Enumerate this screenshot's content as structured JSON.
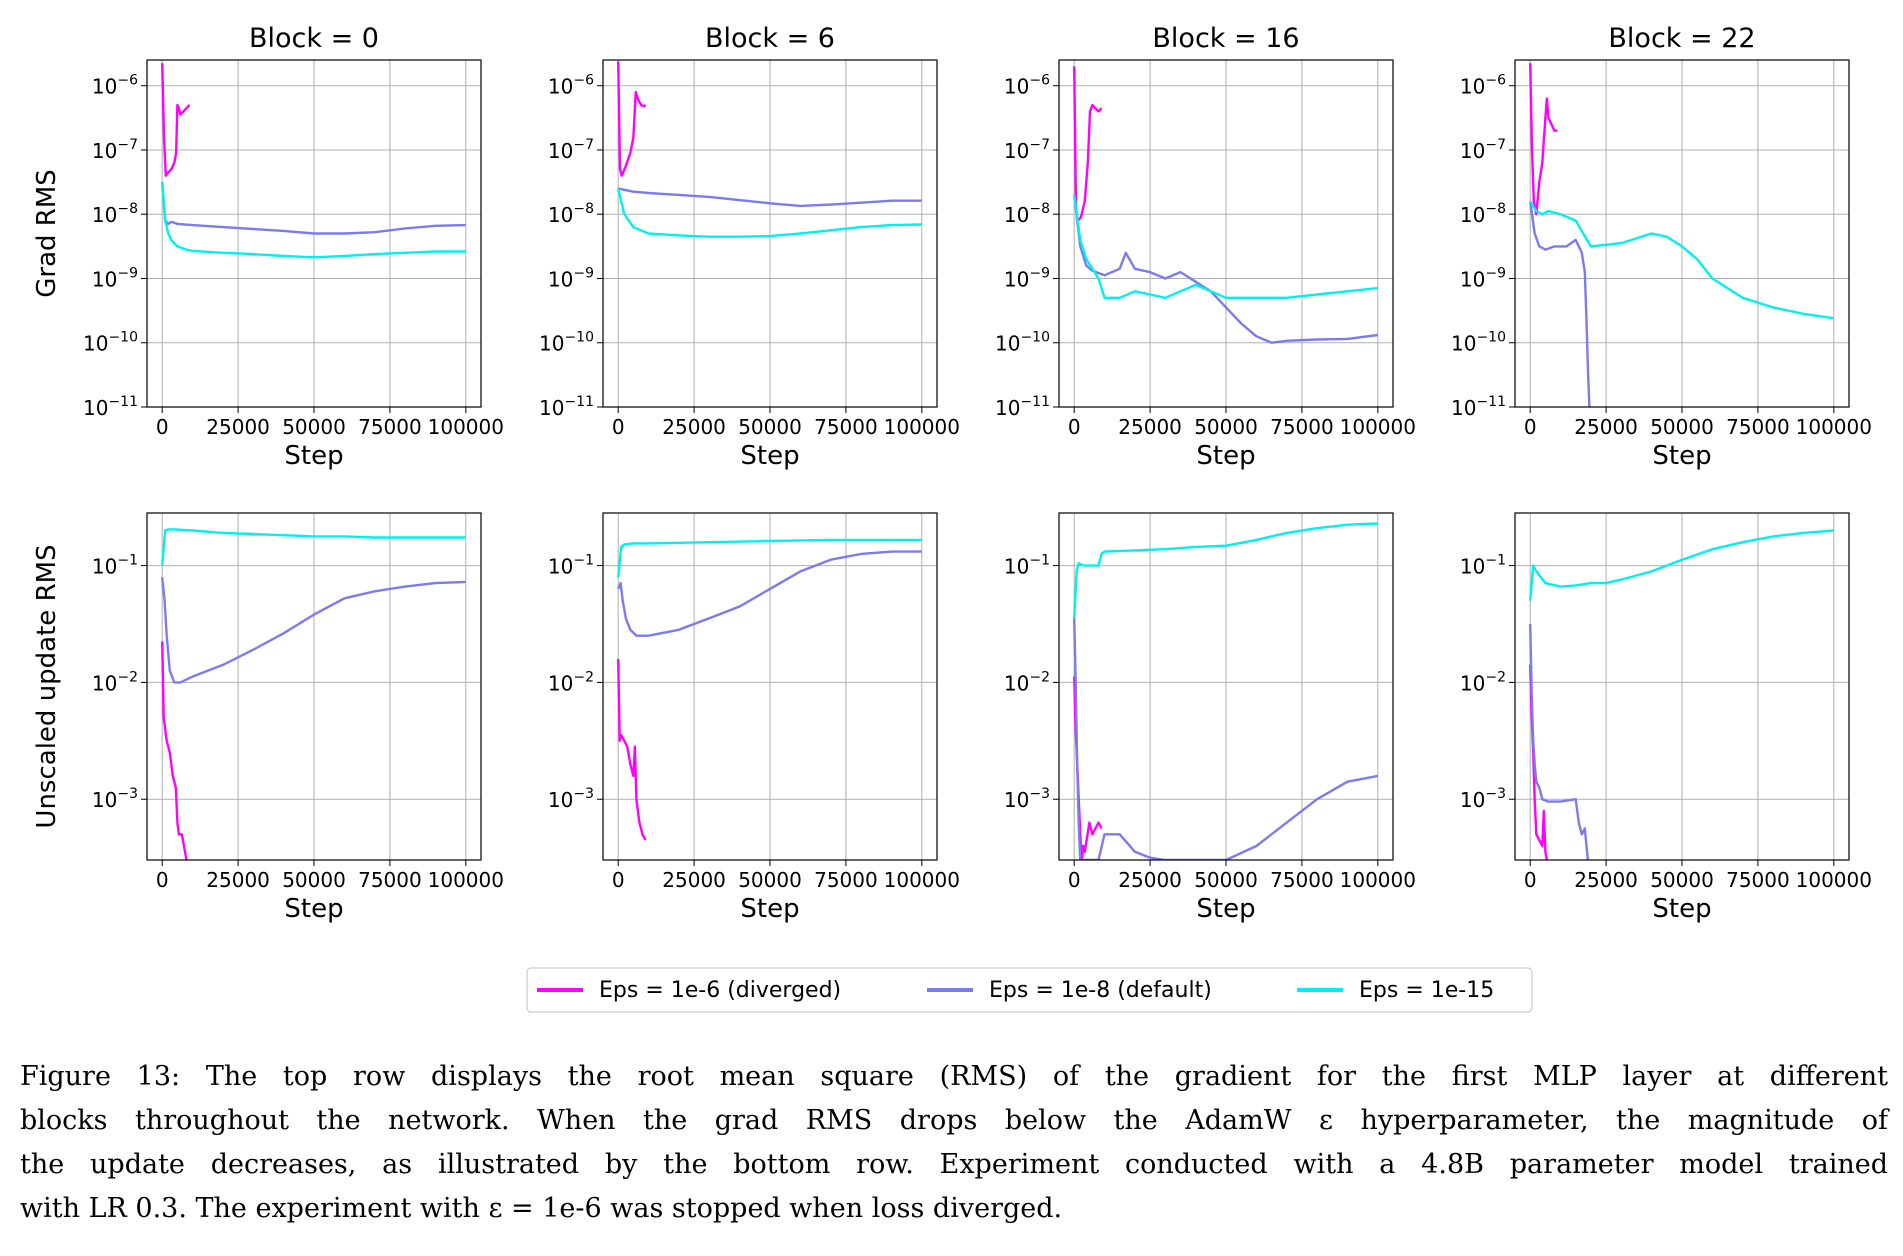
{
  "figure": {
    "caption_lines": [
      "Figure 13: The top row displays the root mean square (RMS) of the gradient for the first MLP layer at different",
      "blocks throughout the network. When the grad RMS drops below the AdamW ε hyperparameter, the magnitude of",
      "the update decreases, as illustrated by the bottom row. Experiment conducted with a 4.8B parameter model trained",
      "with LR 0.3. The experiment with ε = 1e-6 was stopped when loss diverged."
    ]
  },
  "colors": {
    "eps1e6": "#ff00ff",
    "eps1e8": "#7b7bf0",
    "eps1e15": "#00f0f0"
  },
  "chart_data": {
    "type": "line",
    "layout": "2 rows x 4 columns",
    "columns": [
      "Block = 0",
      "Block = 6",
      "Block = 16",
      "Block = 22"
    ],
    "rows": [
      {
        "ylabel": "Grad RMS",
        "yscale": "log",
        "ylim_exp": [
          -11,
          -5.6
        ],
        "ytick_exps": [
          -11,
          -10,
          -9,
          -8,
          -7,
          -6
        ]
      },
      {
        "ylabel": "Unscaled update RMS",
        "yscale": "log",
        "ylim_exp": [
          -3.52,
          -0.55
        ],
        "ytick_exps": [
          -3,
          -2,
          -1
        ]
      }
    ],
    "xlabel": "Step",
    "xlim": [
      -5000,
      105000
    ],
    "xticks": [
      0,
      25000,
      50000,
      75000,
      100000
    ],
    "xtick_labels": [
      "0",
      "25000",
      "50000",
      "75000",
      "100000"
    ],
    "legend": {
      "position": "bottom-center",
      "entries": [
        "Eps = 1e-6 (diverged)",
        "Eps = 1e-8 (default)",
        "Eps = 1e-15"
      ]
    },
    "panels": [
      {
        "row": 0,
        "col": 0,
        "series": [
          {
            "name": "Eps = 1e-6 (diverged)",
            "x": [
              0,
              600,
              1200,
              2000,
              3000,
              4000,
              4600,
              5000,
              5500,
              6000,
              7000,
              8000,
              9000
            ],
            "y_exp": [
              -5.65,
              -6.8,
              -7.4,
              -7.35,
              -7.3,
              -7.2,
              -7.05,
              -6.3,
              -6.35,
              -6.45,
              -6.4,
              -6.35,
              -6.3
            ]
          },
          {
            "name": "Eps = 1e-8 (default)",
            "x": [
              0,
              1000,
              2000,
              3000,
              5000,
              10000,
              20000,
              30000,
              40000,
              50000,
              60000,
              70000,
              80000,
              90000,
              100000
            ],
            "y_exp": [
              -7.5,
              -8.1,
              -8.15,
              -8.12,
              -8.15,
              -8.17,
              -8.2,
              -8.23,
              -8.26,
              -8.3,
              -8.3,
              -8.28,
              -8.22,
              -8.18,
              -8.17
            ]
          },
          {
            "name": "Eps = 1e-15",
            "x": [
              0,
              1000,
              2000,
              3000,
              5000,
              8000,
              10000,
              20000,
              30000,
              40000,
              50000,
              60000,
              70000,
              80000,
              90000,
              100000
            ],
            "y_exp": [
              -7.5,
              -8.1,
              -8.3,
              -8.4,
              -8.5,
              -8.55,
              -8.57,
              -8.6,
              -8.62,
              -8.65,
              -8.67,
              -8.65,
              -8.62,
              -8.6,
              -8.58,
              -8.58
            ]
          }
        ]
      },
      {
        "row": 0,
        "col": 1,
        "series": [
          {
            "name": "Eps = 1e-6 (diverged)",
            "x": [
              0,
              600,
              1200,
              2500,
              4000,
              5000,
              5800,
              6500,
              7500,
              8500,
              9000
            ],
            "y_exp": [
              -5.62,
              -7.3,
              -7.4,
              -7.25,
              -7.05,
              -6.8,
              -6.1,
              -6.2,
              -6.3,
              -6.32,
              -6.3
            ]
          },
          {
            "name": "Eps = 1e-8 (default)",
            "x": [
              0,
              2000,
              5000,
              10000,
              20000,
              30000,
              40000,
              50000,
              60000,
              70000,
              80000,
              90000,
              100000
            ],
            "y_exp": [
              -7.6,
              -7.62,
              -7.65,
              -7.67,
              -7.7,
              -7.73,
              -7.78,
              -7.83,
              -7.87,
              -7.85,
              -7.82,
              -7.79,
              -7.79
            ]
          },
          {
            "name": "Eps = 1e-15",
            "x": [
              0,
              2000,
              5000,
              10000,
              20000,
              30000,
              40000,
              50000,
              60000,
              70000,
              80000,
              90000,
              100000
            ],
            "y_exp": [
              -7.6,
              -8.0,
              -8.2,
              -8.3,
              -8.33,
              -8.35,
              -8.35,
              -8.34,
              -8.3,
              -8.25,
              -8.2,
              -8.17,
              -8.16
            ]
          }
        ]
      },
      {
        "row": 0,
        "col": 2,
        "series": [
          {
            "name": "Eps = 1e-6 (diverged)",
            "x": [
              0,
              600,
              1200,
              2200,
              3500,
              4500,
              5200,
              6000,
              7000,
              8000,
              9000
            ],
            "y_exp": [
              -5.7,
              -7.9,
              -8.1,
              -8.05,
              -7.8,
              -7.2,
              -6.4,
              -6.3,
              -6.35,
              -6.4,
              -6.35
            ]
          },
          {
            "name": "Eps = 1e-8 (default)",
            "x": [
              0,
              2000,
              4000,
              6000,
              10000,
              15000,
              17000,
              20000,
              25000,
              30000,
              35000,
              40000,
              45000,
              50000,
              55000,
              60000,
              65000,
              70000,
              80000,
              90000,
              100000
            ],
            "y_exp": [
              -7.7,
              -8.5,
              -8.8,
              -8.88,
              -8.95,
              -8.85,
              -8.6,
              -8.85,
              -8.9,
              -9.0,
              -8.9,
              -9.05,
              -9.2,
              -9.45,
              -9.7,
              -9.9,
              -10.0,
              -9.97,
              -9.95,
              -9.94,
              -9.88
            ]
          },
          {
            "name": "Eps = 1e-15",
            "x": [
              0,
              2000,
              4000,
              6000,
              8000,
              10000,
              15000,
              20000,
              25000,
              30000,
              40000,
              45000,
              50000,
              60000,
              70000,
              80000,
              90000,
              100000
            ],
            "y_exp": [
              -7.7,
              -8.4,
              -8.7,
              -8.85,
              -9.0,
              -9.3,
              -9.3,
              -9.2,
              -9.25,
              -9.3,
              -9.1,
              -9.2,
              -9.3,
              -9.3,
              -9.3,
              -9.25,
              -9.2,
              -9.15
            ]
          }
        ]
      },
      {
        "row": 0,
        "col": 3,
        "series": [
          {
            "name": "Eps = 1e-6 (diverged)",
            "x": [
              0,
              600,
              1200,
              2000,
              3000,
              4000,
              5000,
              5500,
              6000,
              7000,
              8000,
              9000
            ],
            "y_exp": [
              -5.65,
              -7.0,
              -7.8,
              -8.0,
              -7.5,
              -7.2,
              -6.5,
              -6.2,
              -6.5,
              -6.6,
              -6.7,
              -6.7
            ]
          },
          {
            "name": "Eps = 1e-8 (default)",
            "x": [
              0,
              1500,
              3000,
              5000,
              8000,
              12000,
              15000,
              17000,
              18000,
              18500,
              19000,
              19500
            ],
            "y_exp": [
              -7.8,
              -8.3,
              -8.5,
              -8.55,
              -8.5,
              -8.5,
              -8.4,
              -8.6,
              -8.9,
              -9.6,
              -10.4,
              -11.0
            ]
          },
          {
            "name": "Eps = 1e-15",
            "x": [
              0,
              2000,
              4000,
              6000,
              10000,
              15000,
              20000,
              30000,
              40000,
              45000,
              50000,
              55000,
              60000,
              70000,
              80000,
              90000,
              100000
            ],
            "y_exp": [
              -7.8,
              -7.95,
              -8.0,
              -7.95,
              -8.0,
              -8.1,
              -8.5,
              -8.45,
              -8.3,
              -8.35,
              -8.5,
              -8.7,
              -9.0,
              -9.3,
              -9.45,
              -9.55,
              -9.62
            ]
          }
        ]
      },
      {
        "row": 1,
        "col": 0,
        "series": [
          {
            "name": "Eps = 1e-6 (diverged)",
            "x": [
              0,
              500,
              1000,
              1500,
              2500,
              3500,
              4500,
              5000,
              5500,
              6500,
              7500,
              8000
            ],
            "y_exp": [
              -1.65,
              -2.3,
              -2.4,
              -2.5,
              -2.6,
              -2.8,
              -2.9,
              -3.2,
              -3.3,
              -3.3,
              -3.45,
              -3.52
            ]
          },
          {
            "name": "Eps = 1e-8 (default)",
            "x": [
              0,
              800,
              1500,
              2500,
              4000,
              6000,
              10000,
              20000,
              30000,
              40000,
              50000,
              60000,
              70000,
              80000,
              90000,
              100000
            ],
            "y_exp": [
              -1.1,
              -1.3,
              -1.6,
              -1.9,
              -2.0,
              -2.0,
              -1.95,
              -1.85,
              -1.72,
              -1.58,
              -1.42,
              -1.28,
              -1.22,
              -1.18,
              -1.15,
              -1.14
            ]
          },
          {
            "name": "Eps = 1e-15",
            "x": [
              0,
              1000,
              2000,
              4000,
              10000,
              20000,
              30000,
              40000,
              50000,
              60000,
              70000,
              80000,
              90000,
              100000
            ],
            "y_exp": [
              -1.0,
              -0.7,
              -0.69,
              -0.69,
              -0.7,
              -0.72,
              -0.73,
              -0.74,
              -0.75,
              -0.75,
              -0.76,
              -0.76,
              -0.76,
              -0.76
            ]
          }
        ]
      },
      {
        "row": 1,
        "col": 1,
        "series": [
          {
            "name": "Eps = 1e-6 (diverged)",
            "x": [
              0,
              500,
              1000,
              2000,
              3000,
              4000,
              5000,
              5500,
              6000,
              7000,
              8000,
              9000
            ],
            "y_exp": [
              -1.8,
              -2.5,
              -2.45,
              -2.5,
              -2.55,
              -2.7,
              -2.8,
              -2.55,
              -3.0,
              -3.2,
              -3.3,
              -3.35
            ]
          },
          {
            "name": "Eps = 1e-8 (default)",
            "x": [
              0,
              800,
              1500,
              2500,
              4000,
              6000,
              10000,
              20000,
              30000,
              40000,
              50000,
              60000,
              70000,
              80000,
              90000,
              100000
            ],
            "y_exp": [
              -1.2,
              -1.15,
              -1.3,
              -1.45,
              -1.55,
              -1.6,
              -1.6,
              -1.55,
              -1.45,
              -1.35,
              -1.2,
              -1.05,
              -0.95,
              -0.9,
              -0.88,
              -0.88
            ]
          },
          {
            "name": "Eps = 1e-15",
            "x": [
              0,
              1000,
              2000,
              5000,
              10000,
              30000,
              50000,
              70000,
              90000,
              100000
            ],
            "y_exp": [
              -1.1,
              -0.84,
              -0.82,
              -0.81,
              -0.81,
              -0.8,
              -0.79,
              -0.78,
              -0.78,
              -0.78
            ]
          }
        ]
      },
      {
        "row": 1,
        "col": 2,
        "series": [
          {
            "name": "Eps = 1e-6 (diverged)",
            "x": [
              0,
              500,
              1000,
              1500,
              2000,
              2500,
              3000,
              3500,
              5000,
              6000,
              7000,
              8000,
              9000
            ],
            "y_exp": [
              -1.95,
              -2.4,
              -2.7,
              -3.0,
              -3.3,
              -3.52,
              -3.4,
              -3.45,
              -3.2,
              -3.3,
              -3.25,
              -3.2,
              -3.25
            ]
          },
          {
            "name": "Eps = 1e-8 (default)",
            "x": [
              0,
              500,
              1000,
              1500,
              2000,
              2500,
              3000,
              8000,
              10000,
              15000,
              20000,
              25000,
              30000,
              40000,
              50000,
              60000,
              70000,
              80000,
              90000,
              100000
            ],
            "y_exp": [
              -1.45,
              -2.0,
              -2.7,
              -3.2,
              -3.52,
              -3.52,
              -3.52,
              -3.52,
              -3.3,
              -3.3,
              -3.45,
              -3.5,
              -3.52,
              -3.52,
              -3.52,
              -3.4,
              -3.2,
              -3.0,
              -2.85,
              -2.8
            ]
          },
          {
            "name": "Eps = 1e-15",
            "x": [
              0,
              800,
              1500,
              3000,
              6000,
              8000,
              9000,
              10000,
              20000,
              30000,
              40000,
              50000,
              60000,
              70000,
              80000,
              90000,
              100000
            ],
            "y_exp": [
              -1.45,
              -1.05,
              -0.98,
              -1.0,
              -1.0,
              -1.0,
              -0.9,
              -0.88,
              -0.87,
              -0.86,
              -0.84,
              -0.83,
              -0.78,
              -0.72,
              -0.68,
              -0.65,
              -0.64
            ]
          }
        ]
      },
      {
        "row": 1,
        "col": 3,
        "series": [
          {
            "name": "Eps = 1e-6 (diverged)",
            "x": [
              0,
              500,
              1000,
              1500,
              2000,
              3000,
              4000,
              4500,
              5000,
              5500
            ],
            "y_exp": [
              -1.85,
              -2.3,
              -2.6,
              -3.0,
              -3.3,
              -3.35,
              -3.4,
              -3.1,
              -3.45,
              -3.52
            ]
          },
          {
            "name": "Eps = 1e-8 (default)",
            "x": [
              0,
              500,
              1000,
              1500,
              2000,
              3000,
              4000,
              6000,
              10000,
              15000,
              16000,
              17000,
              18000,
              19000
            ],
            "y_exp": [
              -1.5,
              -2.1,
              -2.5,
              -2.7,
              -2.85,
              -2.9,
              -3.0,
              -3.02,
              -3.02,
              -3.0,
              -3.2,
              -3.3,
              -3.25,
              -3.52
            ]
          },
          {
            "name": "Eps = 1e-15",
            "x": [
              0,
              1000,
              2000,
              5000,
              10000,
              15000,
              20000,
              25000,
              30000,
              40000,
              50000,
              60000,
              70000,
              80000,
              90000,
              100000
            ],
            "y_exp": [
              -1.3,
              -1.0,
              -1.05,
              -1.15,
              -1.18,
              -1.17,
              -1.15,
              -1.15,
              -1.12,
              -1.05,
              -0.95,
              -0.86,
              -0.8,
              -0.75,
              -0.72,
              -0.7
            ]
          }
        ]
      }
    ]
  }
}
